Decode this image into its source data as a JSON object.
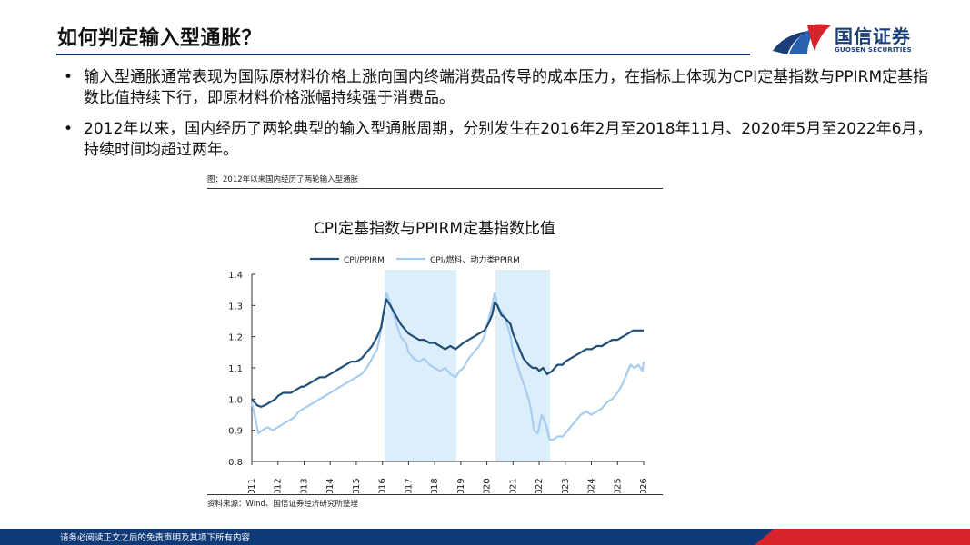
{
  "slide": {
    "title": "如何判定输入型通胀？",
    "bullets": [
      "输入型通胀通常表现为国际原材料价格上涨向国内终端消费品传导的成本压力，在指标上体现为CPI定基指数与PPIRM定基指数比值持续下行，即原材料价格涨幅持续强于消费品。",
      "2012年以来，国内经历了两轮典型的输入型通胀周期，分别发生在2016年2月至2018年11月、2020年5月至2022年6月，持续时间均超过两年。"
    ],
    "bullet_symbol": "•"
  },
  "logo": {
    "cn": "国信证券",
    "en": "GUOSEN SECURITIES"
  },
  "figure": {
    "caption": "图：2012年以来国内经历了两轮输入型通胀",
    "source": "资料来源：Wind、国信证券经济研究所整理"
  },
  "footer": {
    "text": "请务必阅读正文之后的免责声明及其项下所有内容"
  },
  "colors": {
    "navy": "#0b2d64",
    "series_dark": "#1f4e79",
    "series_light": "#a6cdf0",
    "shade": "#ddeefb",
    "accent_red": "#d6242a"
  },
  "chart_data": {
    "type": "line",
    "title": "CPI定基指数与PPIRM定基指数比值",
    "xlabel": "",
    "ylabel": "",
    "xlim": [
      2011,
      2026
    ],
    "ylim": [
      0.8,
      1.4
    ],
    "y_ticks": [
      "0.8",
      "0.9",
      "1.0",
      "1.1",
      "1.2",
      "1.3",
      "1.4"
    ],
    "x_ticks": [
      "2011",
      "2012",
      "2013",
      "2014",
      "2015",
      "2016",
      "2017",
      "2018",
      "2019",
      "2020",
      "2021",
      "2022",
      "2023",
      "2024",
      "2025",
      "2026"
    ],
    "shaded_periods": [
      [
        2016.08,
        2018.83
      ],
      [
        2020.33,
        2022.42
      ]
    ],
    "series": [
      {
        "name": "CPI/PPIRM",
        "x": [
          2011.0,
          2011.1,
          2011.2,
          2011.35,
          2011.5,
          2011.7,
          2011.9,
          2012.0,
          2012.2,
          2012.5,
          2012.7,
          2012.9,
          2013.0,
          2013.2,
          2013.4,
          2013.6,
          2013.8,
          2014.0,
          2014.2,
          2014.4,
          2014.6,
          2014.8,
          2015.0,
          2015.2,
          2015.4,
          2015.6,
          2015.8,
          2015.95,
          2016.05,
          2016.15,
          2016.3,
          2016.5,
          2016.7,
          2016.9,
          2017.0,
          2017.2,
          2017.4,
          2017.6,
          2017.8,
          2018.0,
          2018.2,
          2018.4,
          2018.6,
          2018.8,
          2018.95,
          2019.1,
          2019.3,
          2019.5,
          2019.7,
          2019.9,
          2020.05,
          2020.2,
          2020.3,
          2020.4,
          2020.55,
          2020.7,
          2020.9,
          2021.0,
          2021.2,
          2021.4,
          2021.6,
          2021.75,
          2021.9,
          2022.0,
          2022.15,
          2022.3,
          2022.5,
          2022.7,
          2022.9,
          2023.0,
          2023.2,
          2023.4,
          2023.6,
          2023.8,
          2024.0,
          2024.2,
          2024.4,
          2024.6,
          2024.8,
          2025.0,
          2025.2,
          2025.4,
          2025.6,
          2025.8,
          2025.9,
          2026.0
        ],
        "values": [
          1.0,
          0.99,
          0.98,
          0.975,
          0.98,
          0.99,
          1.0,
          1.01,
          1.02,
          1.02,
          1.03,
          1.04,
          1.04,
          1.05,
          1.06,
          1.07,
          1.07,
          1.08,
          1.09,
          1.1,
          1.11,
          1.12,
          1.12,
          1.13,
          1.15,
          1.17,
          1.2,
          1.23,
          1.28,
          1.32,
          1.3,
          1.27,
          1.24,
          1.22,
          1.21,
          1.2,
          1.19,
          1.19,
          1.18,
          1.18,
          1.17,
          1.16,
          1.17,
          1.16,
          1.17,
          1.18,
          1.19,
          1.2,
          1.21,
          1.22,
          1.24,
          1.27,
          1.31,
          1.3,
          1.27,
          1.26,
          1.24,
          1.21,
          1.17,
          1.13,
          1.11,
          1.1,
          1.1,
          1.09,
          1.1,
          1.08,
          1.09,
          1.11,
          1.11,
          1.12,
          1.13,
          1.14,
          1.15,
          1.16,
          1.16,
          1.17,
          1.17,
          1.18,
          1.19,
          1.19,
          1.2,
          1.21,
          1.22,
          1.22,
          1.22,
          1.22
        ]
      },
      {
        "name": "CPI/燃料、动力类PPIRM",
        "x": [
          2011.0,
          2011.1,
          2011.25,
          2011.4,
          2011.6,
          2011.8,
          2012.0,
          2012.2,
          2012.4,
          2012.6,
          2012.8,
          2013.0,
          2013.2,
          2013.4,
          2013.6,
          2013.8,
          2014.0,
          2014.2,
          2014.4,
          2014.6,
          2014.8,
          2015.0,
          2015.2,
          2015.4,
          2015.6,
          2015.8,
          2015.95,
          2016.05,
          2016.15,
          2016.3,
          2016.5,
          2016.7,
          2016.9,
          2017.0,
          2017.2,
          2017.4,
          2017.6,
          2017.8,
          2018.0,
          2018.2,
          2018.4,
          2018.6,
          2018.8,
          2018.95,
          2019.1,
          2019.3,
          2019.5,
          2019.7,
          2019.9,
          2020.05,
          2020.2,
          2020.3,
          2020.4,
          2020.55,
          2020.7,
          2020.9,
          2021.0,
          2021.2,
          2021.4,
          2021.6,
          2021.7,
          2021.8,
          2021.95,
          2022.1,
          2022.25,
          2022.4,
          2022.55,
          2022.7,
          2022.9,
          2023.0,
          2023.2,
          2023.4,
          2023.6,
          2023.8,
          2024.0,
          2024.2,
          2024.4,
          2024.6,
          2024.8,
          2025.0,
          2025.2,
          2025.35,
          2025.5,
          2025.65,
          2025.8,
          2025.95,
          2026.0
        ],
        "values": [
          0.99,
          0.95,
          0.89,
          0.9,
          0.91,
          0.9,
          0.91,
          0.92,
          0.93,
          0.94,
          0.96,
          0.97,
          0.98,
          0.99,
          1.0,
          1.01,
          1.02,
          1.03,
          1.04,
          1.05,
          1.06,
          1.07,
          1.08,
          1.1,
          1.13,
          1.16,
          1.22,
          1.28,
          1.34,
          1.31,
          1.25,
          1.2,
          1.18,
          1.15,
          1.13,
          1.12,
          1.13,
          1.11,
          1.1,
          1.09,
          1.1,
          1.08,
          1.07,
          1.09,
          1.1,
          1.13,
          1.15,
          1.17,
          1.2,
          1.25,
          1.3,
          1.34,
          1.3,
          1.28,
          1.26,
          1.2,
          1.15,
          1.1,
          1.05,
          1.0,
          0.96,
          0.9,
          0.89,
          0.95,
          0.92,
          0.87,
          0.87,
          0.88,
          0.88,
          0.89,
          0.91,
          0.93,
          0.95,
          0.96,
          0.95,
          0.96,
          0.97,
          0.99,
          1.0,
          1.02,
          1.05,
          1.08,
          1.11,
          1.1,
          1.11,
          1.09,
          1.12
        ]
      }
    ]
  }
}
